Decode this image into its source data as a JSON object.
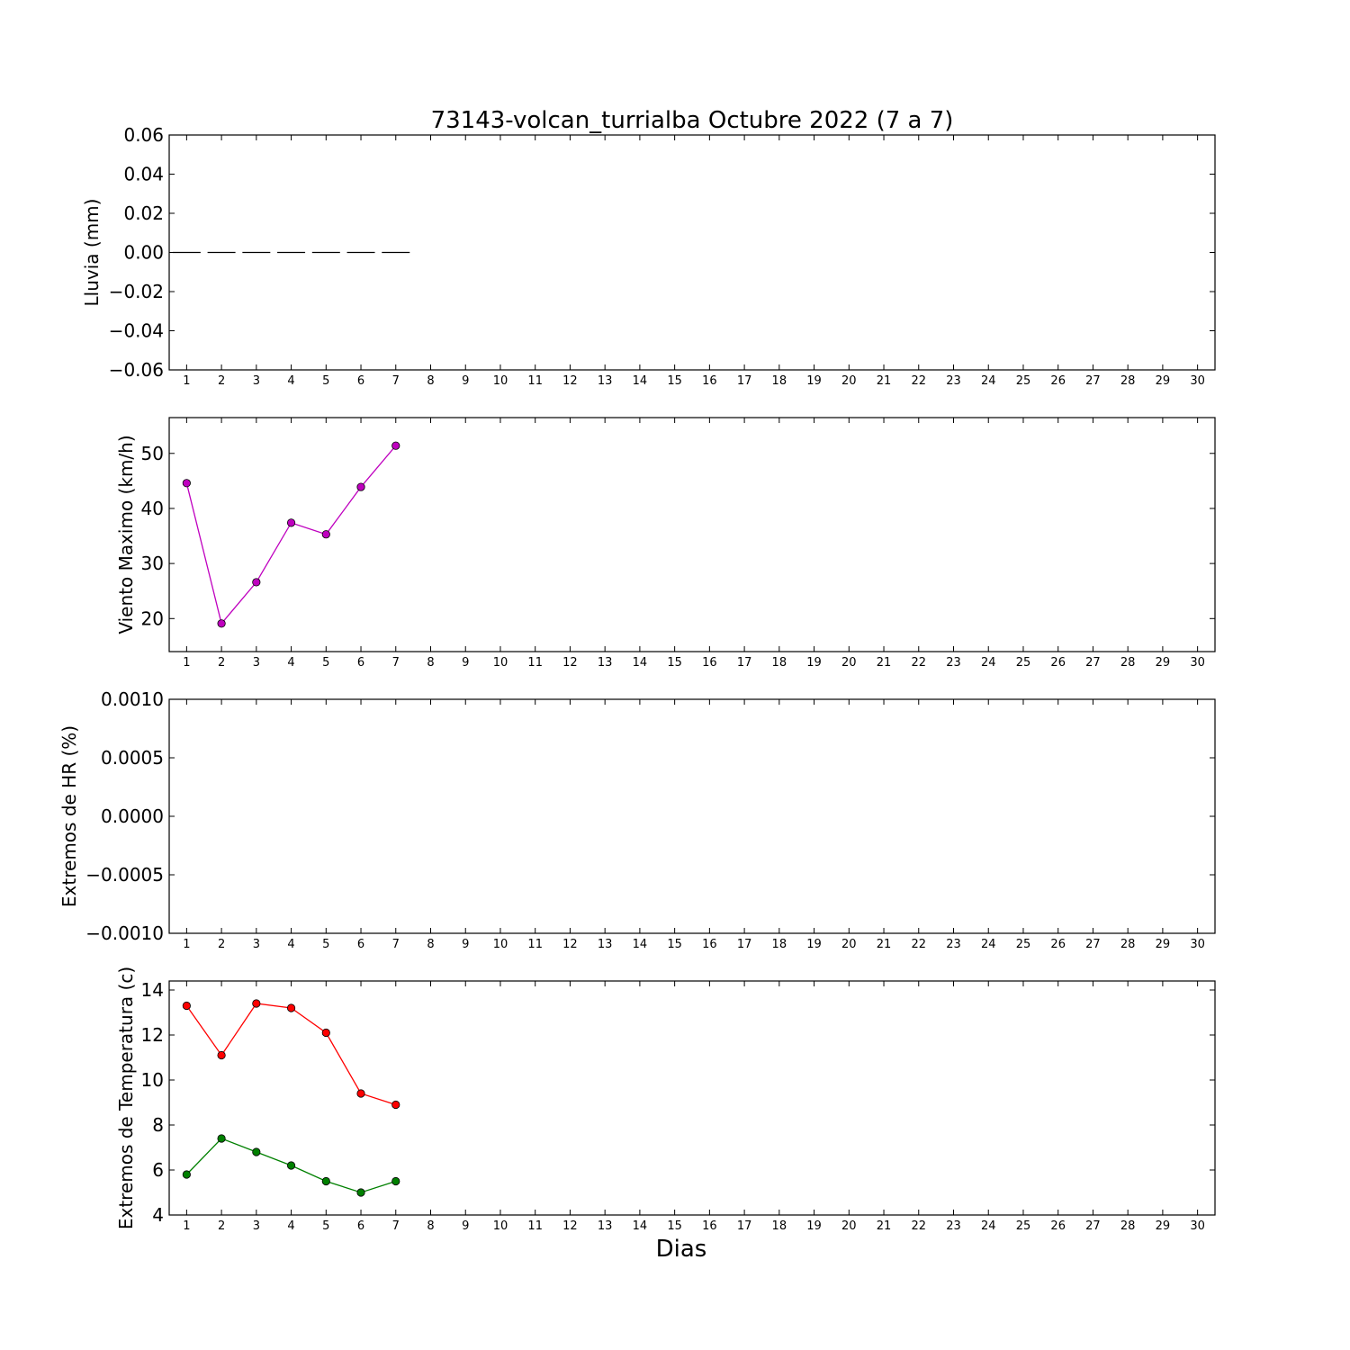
{
  "chart_data": [
    {
      "type": "bar",
      "title": "73143-volcan_turrialba Octubre 2022  (7 a 7)",
      "ylabel": "Lluvia (mm)",
      "xlabel": "",
      "ylim": [
        -0.06,
        0.06
      ],
      "y_ticks": [
        "0.06",
        "0.04",
        "0.02",
        "0.00",
        "−0.02",
        "−0.04",
        "−0.06"
      ],
      "y_tick_values": [
        0.06,
        0.04,
        0.02,
        0.0,
        -0.02,
        -0.04,
        -0.06
      ],
      "x_ticks": [
        "1",
        "2",
        "3",
        "4",
        "5",
        "6",
        "7",
        "8",
        "9",
        "10",
        "11",
        "12",
        "13",
        "14",
        "15",
        "16",
        "17",
        "18",
        "19",
        "20",
        "21",
        "22",
        "23",
        "24",
        "25",
        "26",
        "27",
        "28",
        "29",
        "30"
      ],
      "series": [
        {
          "x": [
            1,
            2,
            3,
            4,
            5,
            6,
            7
          ],
          "values": [
            0,
            0,
            0,
            0,
            0,
            0,
            0
          ],
          "color": "#000000"
        }
      ]
    },
    {
      "type": "line",
      "ylabel": "Viento Maximo (km/h)",
      "ylim": [
        14,
        56.5
      ],
      "y_ticks": [
        "20",
        "30",
        "40",
        "50"
      ],
      "y_tick_values": [
        20,
        30,
        40,
        50
      ],
      "x_ticks": [
        "1",
        "2",
        "3",
        "4",
        "5",
        "6",
        "7",
        "8",
        "9",
        "10",
        "11",
        "12",
        "13",
        "14",
        "15",
        "16",
        "17",
        "18",
        "19",
        "20",
        "21",
        "22",
        "23",
        "24",
        "25",
        "26",
        "27",
        "28",
        "29",
        "30"
      ],
      "series": [
        {
          "x": [
            1,
            2,
            3,
            4,
            5,
            6,
            7
          ],
          "values": [
            44.6,
            19.1,
            26.6,
            37.4,
            35.3,
            43.9,
            51.4
          ],
          "color": "#bf00bf"
        }
      ]
    },
    {
      "type": "line",
      "ylabel": "Extremos de HR (%)",
      "ylim": [
        -0.001,
        0.001
      ],
      "y_ticks": [
        "0.0010",
        "0.0005",
        "0.0000",
        "−0.0005",
        "−0.0010"
      ],
      "y_tick_values": [
        0.001,
        0.0005,
        0.0,
        -0.0005,
        -0.001
      ],
      "x_ticks": [
        "1",
        "2",
        "3",
        "4",
        "5",
        "6",
        "7",
        "8",
        "9",
        "10",
        "11",
        "12",
        "13",
        "14",
        "15",
        "16",
        "17",
        "18",
        "19",
        "20",
        "21",
        "22",
        "23",
        "24",
        "25",
        "26",
        "27",
        "28",
        "29",
        "30"
      ],
      "series": []
    },
    {
      "type": "line",
      "ylabel": "Extremos de Temperatura (c)",
      "xlabel": "Dias",
      "ylim": [
        4,
        14.4
      ],
      "y_ticks": [
        "14",
        "12",
        "10",
        "8",
        "6",
        "4"
      ],
      "y_tick_values": [
        14,
        12,
        10,
        8,
        6,
        4
      ],
      "x_ticks": [
        "1",
        "2",
        "3",
        "4",
        "5",
        "6",
        "7",
        "8",
        "9",
        "10",
        "11",
        "12",
        "13",
        "14",
        "15",
        "16",
        "17",
        "18",
        "19",
        "20",
        "21",
        "22",
        "23",
        "24",
        "25",
        "26",
        "27",
        "28",
        "29",
        "30"
      ],
      "series": [
        {
          "x": [
            1,
            2,
            3,
            4,
            5,
            6,
            7
          ],
          "values": [
            13.3,
            11.1,
            13.4,
            13.2,
            12.1,
            9.4,
            8.9
          ],
          "color": "#ff0000"
        },
        {
          "x": [
            1,
            2,
            3,
            4,
            5,
            6,
            7
          ],
          "values": [
            5.8,
            7.4,
            6.8,
            6.2,
            5.5,
            5.0,
            5.5
          ],
          "color": "#008000"
        }
      ]
    }
  ]
}
